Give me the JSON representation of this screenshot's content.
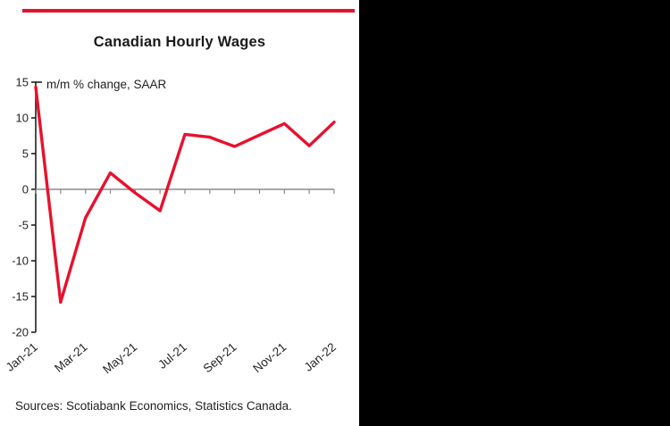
{
  "panel": {
    "title": "Canadian Hourly Wages",
    "source": "Sources: Scotiabank Economics, Statistics Canada."
  },
  "chart_data": {
    "type": "line",
    "title": "Canadian Hourly Wages",
    "annotation": "m/m % change, SAAR",
    "x": [
      "Jan-21",
      "Feb-21",
      "Mar-21",
      "Apr-21",
      "May-21",
      "Jun-21",
      "Jul-21",
      "Aug-21",
      "Sep-21",
      "Oct-21",
      "Nov-21",
      "Dec-21",
      "Jan-22"
    ],
    "series": [
      {
        "name": "Canadian hourly wages, m/m % change SAAR",
        "color": "#e8112d",
        "values": [
          14.3,
          -15.8,
          -4.0,
          2.3,
          -0.5,
          -3.0,
          7.7,
          7.3,
          6.0,
          7.6,
          9.2,
          6.1,
          9.4
        ]
      }
    ],
    "ylim": [
      -20,
      15
    ],
    "yticks": [
      15,
      10,
      5,
      0,
      -5,
      -10,
      -15,
      -20
    ],
    "xtick_labels": [
      "Jan-21",
      "Mar-21",
      "May-21",
      "Jul-21",
      "Sep-21",
      "Nov-21",
      "Jan-22"
    ],
    "xtick_every": 2,
    "zero_line": true,
    "grid": false,
    "legend": "none"
  },
  "colors": {
    "accent": "#e8112d",
    "axis": "#231f20",
    "text": "#231f20",
    "zero_line": "#8a8a8d",
    "panel_bg": "#ffffff",
    "outer_bg": "#000000"
  }
}
